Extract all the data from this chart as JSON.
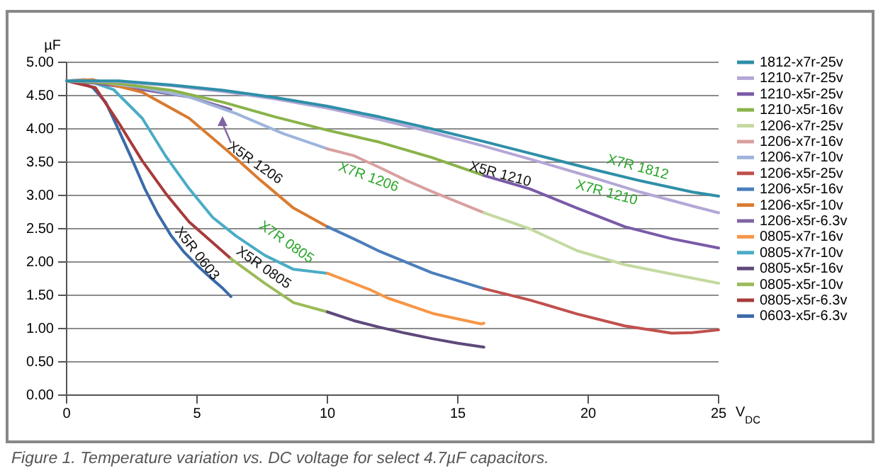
{
  "chart_data": {
    "type": "line",
    "ylabel": "µF",
    "xlabel": "V$_{DC}$",
    "xlim": [
      0,
      25
    ],
    "xticks": [
      0,
      5,
      10,
      15,
      20,
      25
    ],
    "ylim": [
      0,
      5
    ],
    "yticks": [
      {
        "value": 0,
        "label": "0.00"
      },
      {
        "value": 0.5,
        "label": "0.50"
      },
      {
        "value": 1,
        "label": "1.00"
      },
      {
        "value": 1.5,
        "label": "1.50"
      },
      {
        "value": 2,
        "label": "2.00"
      },
      {
        "value": 2.5,
        "label": "2.50"
      },
      {
        "value": 3,
        "label": "3.00"
      },
      {
        "value": 3.5,
        "label": "3.50"
      },
      {
        "value": 4,
        "label": "4.00"
      },
      {
        "value": 4.5,
        "label": "4.50"
      },
      {
        "value": 5,
        "label": "5.00"
      }
    ],
    "grid": "y",
    "legend": "right",
    "marker": "none",
    "line_style": "solid",
    "series": [
      {
        "name": "1812-x7r-25v",
        "color": "#2e8fa8",
        "x": [
          0,
          2,
          4,
          6,
          8,
          10,
          12,
          14,
          16,
          18,
          20,
          22,
          24,
          25
        ],
        "values": [
          4.72,
          4.72,
          4.66,
          4.58,
          4.47,
          4.34,
          4.18,
          4.0,
          3.81,
          3.61,
          3.41,
          3.22,
          3.05,
          2.99
        ]
      },
      {
        "name": "1210-x7r-25v",
        "color": "#b4a7d6",
        "x": [
          0,
          2,
          4,
          6,
          8,
          10,
          12,
          14,
          16,
          18,
          20,
          22,
          24,
          25
        ],
        "values": [
          4.72,
          4.71,
          4.65,
          4.56,
          4.45,
          4.31,
          4.14,
          3.95,
          3.74,
          3.52,
          3.29,
          3.05,
          2.84,
          2.74
        ]
      },
      {
        "name": "1210-x5r-25v",
        "color": "#7a5aa8",
        "x": [
          16,
          17.75,
          19.57,
          21.4,
          23.2,
          25
        ],
        "values": [
          3.3,
          3.1,
          2.81,
          2.53,
          2.35,
          2.21
        ]
      },
      {
        "name": "1210-x5r-16v",
        "color": "#8ab34a",
        "x": [
          0,
          2,
          4,
          6,
          8,
          10,
          12,
          14,
          16
        ],
        "values": [
          4.72,
          4.68,
          4.58,
          4.4,
          4.18,
          3.98,
          3.8,
          3.57,
          3.3
        ]
      },
      {
        "name": "1206-x7r-25v",
        "color": "#c4d9a0",
        "x": [
          16,
          17.75,
          19.57,
          21.4,
          23.2,
          25
        ],
        "values": [
          2.74,
          2.5,
          2.17,
          1.96,
          1.82,
          1.68
        ]
      },
      {
        "name": "1206-x7r-16v",
        "color": "#d9a0a0",
        "x": [
          10,
          11,
          12,
          13,
          14,
          15,
          16
        ],
        "values": [
          3.7,
          3.6,
          3.42,
          3.23,
          3.06,
          2.9,
          2.74
        ]
      },
      {
        "name": "1206-x7r-10v",
        "color": "#9eb4dc",
        "x": [
          0,
          1,
          2.9,
          4.7,
          6.5,
          8.3,
          10
        ],
        "values": [
          4.72,
          4.72,
          4.62,
          4.48,
          4.23,
          3.93,
          3.7
        ]
      },
      {
        "name": "1206-x5r-25v",
        "color": "#c0504d",
        "x": [
          16,
          17.75,
          19.57,
          21.4,
          23.2,
          24,
          25
        ],
        "values": [
          1.6,
          1.43,
          1.22,
          1.04,
          0.93,
          0.94,
          0.98
        ]
      },
      {
        "name": "1206-x5r-16v",
        "color": "#4a7ebb",
        "x": [
          10,
          11,
          12,
          14,
          16
        ],
        "values": [
          2.53,
          2.35,
          2.16,
          1.84,
          1.6
        ]
      },
      {
        "name": "1206-x5r-10v",
        "color": "#d97b30",
        "x": [
          0,
          1,
          2.9,
          4.7,
          6.2,
          7.4,
          8.7,
          10
        ],
        "values": [
          4.72,
          4.74,
          4.55,
          4.16,
          3.66,
          3.24,
          2.81,
          2.53
        ]
      },
      {
        "name": "1206-x5r-6.3v",
        "color": "#8064a2",
        "x": [
          0,
          1,
          2.9,
          4.7,
          6.3
        ],
        "values": [
          4.72,
          4.69,
          4.59,
          4.48,
          4.29
        ]
      },
      {
        "name": "0805-x7r-16v",
        "color": "#f79646",
        "x": [
          10,
          11.6,
          12.3,
          14.1,
          15.9,
          16
        ],
        "values": [
          1.83,
          1.59,
          1.46,
          1.22,
          1.07,
          1.08
        ]
      },
      {
        "name": "0805-x7r-10v",
        "color": "#4bacc6",
        "x": [
          0,
          0.7,
          1.8,
          2.9,
          3.8,
          4.7,
          5.6,
          6.5,
          7.6,
          8.7,
          10
        ],
        "values": [
          4.72,
          4.74,
          4.59,
          4.16,
          3.59,
          3.1,
          2.67,
          2.39,
          2.1,
          1.89,
          1.83
        ]
      },
      {
        "name": "0805-x5r-16v",
        "color": "#5f497a",
        "x": [
          10,
          11,
          12,
          13,
          14,
          15,
          16
        ],
        "values": [
          1.25,
          1.12,
          1.02,
          0.93,
          0.85,
          0.78,
          0.72
        ]
      },
      {
        "name": "0805-x5r-10v",
        "color": "#9bbb59",
        "x": [
          6.3,
          7.6,
          8.7,
          10
        ],
        "values": [
          2.05,
          1.68,
          1.39,
          1.25
        ]
      },
      {
        "name": "0805-x5r-6.3v",
        "color": "#a83a3a",
        "x": [
          0,
          1.1,
          2,
          2.9,
          3.8,
          4.7,
          6.3
        ],
        "values": [
          4.72,
          4.62,
          4.09,
          3.52,
          3.03,
          2.6,
          2.05
        ]
      },
      {
        "name": "0603-x5r-6.3v",
        "color": "#3c6aa8",
        "x": [
          0,
          0.5,
          1,
          1.5,
          2,
          2.5,
          3,
          3.5,
          4,
          4.5,
          5,
          5.5,
          6,
          6.3
        ],
        "values": [
          4.72,
          4.7,
          4.62,
          4.4,
          3.98,
          3.55,
          3.1,
          2.72,
          2.4,
          2.15,
          1.95,
          1.77,
          1.6,
          1.48
        ]
      }
    ],
    "annotations": [
      "X5R 0603",
      "X5R 0805",
      "X7R 0805",
      "X5R 1206",
      "X7R 1206",
      "X5R 1210",
      "X7R 1210",
      "X7R 1812",
      "Figure 1. Temperature variation vs. DC voltage for select 4.7µF capacitors."
    ]
  }
}
